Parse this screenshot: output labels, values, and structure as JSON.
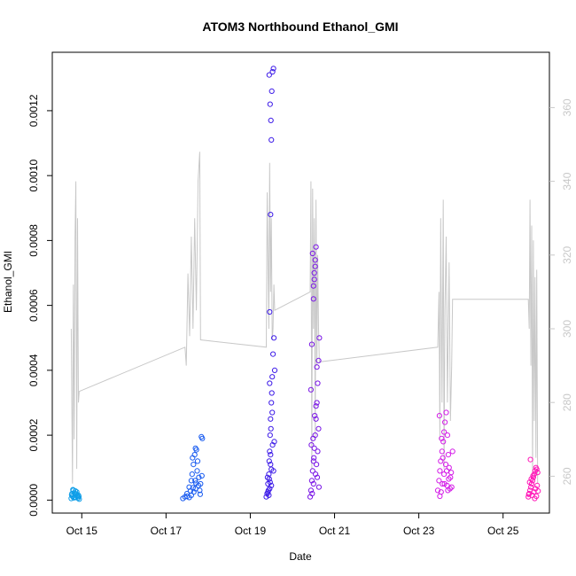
{
  "chart_data": {
    "type": "scatter",
    "title": "ATOM3 Northbound Ethanol_GMI",
    "xlabel": "Date",
    "ylabel": "Ethanol_GMI",
    "x_ticks": [
      "Oct 15",
      "Oct 17",
      "Oct 19",
      "Oct 21",
      "Oct 23",
      "Oct 25"
    ],
    "x_tick_days": [
      15,
      17,
      19,
      21,
      23,
      25
    ],
    "xlim": [
      14.3,
      26.1
    ],
    "y_ticks": [
      "0.0000",
      "0.0002",
      "0.0004",
      "0.0006",
      "0.0008",
      "0.0010",
      "0.0012"
    ],
    "ylim": [
      -4e-05,
      0.00138
    ],
    "y2_ticks": [
      "260",
      "280",
      "300",
      "320",
      "340",
      "360"
    ],
    "y2lim": [
      250,
      375
    ],
    "grid": false,
    "colors": {
      "line": "#c8c8c8",
      "axis": "#000000",
      "right_axis": "#c8c8c8",
      "cluster_1": "#0f9ee8",
      "cluster_2": "#1a5cf0",
      "cluster_3": "#3d1be8",
      "cluster_4": "#7a16e6",
      "cluster_5": "#d41ee8",
      "cluster_6": "#ff19b8"
    },
    "series": [
      {
        "role": "scatter",
        "color": "#0f9ee8",
        "x": [
          14.75,
          14.78,
          14.8,
          14.82,
          14.84,
          14.86,
          14.88,
          14.9,
          14.92,
          14.94,
          14.77,
          14.81,
          14.85,
          14.89,
          14.79,
          14.83,
          14.87,
          14.91,
          14.76,
          14.93
        ],
        "y": [
          5e-06,
          1.2e-05,
          3e-05,
          2.2e-05,
          1.8e-05,
          8e-06,
          2.5e-05,
          1e-05,
          1.5e-05,
          3e-06,
          2e-05,
          7e-06,
          2.8e-05,
          1.4e-05,
          3.2e-05,
          9e-06,
          1.9e-05,
          6e-06,
          1.6e-05,
          1.1e-05
        ]
      },
      {
        "role": "scatter",
        "color": "#1a5cf0",
        "x": [
          17.4,
          17.45,
          17.5,
          17.55,
          17.6,
          17.62,
          17.65,
          17.68,
          17.7,
          17.72,
          17.75,
          17.78,
          17.8,
          17.82,
          17.84,
          17.86,
          17.6,
          17.66,
          17.7,
          17.74,
          17.55,
          17.63,
          17.69,
          17.77,
          17.81,
          17.85,
          17.5,
          17.58,
          17.64,
          17.71
        ],
        "y": [
          5e-06,
          1e-05,
          2e-05,
          4e-05,
          6e-05,
          8e-05,
          0.00011,
          0.00014,
          0.00016,
          0.000155,
          0.00012,
          7e-05,
          3e-05,
          5e-05,
          0.000195,
          0.00019,
          1.5e-05,
          2.5e-05,
          3.5e-05,
          9e-05,
          8e-06,
          0.00013,
          6e-05,
          4.5e-05,
          1.8e-05,
          7.5e-05,
          1.2e-05,
          2.8e-05,
          3.8e-05,
          5.2e-05
        ]
      },
      {
        "role": "scatter",
        "color": "#3d1be8",
        "x": [
          19.38,
          19.4,
          19.42,
          19.44,
          19.45,
          19.46,
          19.47,
          19.48,
          19.5,
          19.52,
          19.54,
          19.56,
          19.58,
          19.46,
          19.48,
          19.5,
          19.49,
          19.47,
          19.51,
          19.45,
          19.53,
          19.55,
          19.43,
          19.41,
          19.57,
          19.46,
          19.5,
          19.48,
          19.52,
          19.44,
          19.49,
          19.47,
          19.51,
          19.45,
          19.53,
          19.42,
          19.55,
          19.46,
          19.5,
          19.48
        ],
        "y": [
          1e-05,
          2e-05,
          5e-05,
          8e-05,
          0.00012,
          0.00015,
          0.0002,
          0.00025,
          0.0003,
          0.00038,
          0.00045,
          0.0005,
          0.0004,
          0.00058,
          0.00088,
          0.00111,
          0.00117,
          0.00122,
          0.00126,
          0.00131,
          0.00132,
          0.00133,
          3e-05,
          7e-05,
          0.00018,
          3.5e-05,
          9.5e-05,
          0.00014,
          0.00027,
          1.5e-05,
          0.00022,
          5.5e-05,
          0.00033,
          6.5e-05,
          0.00017,
          2.5e-05,
          9e-05,
          0.00036,
          4.5e-05,
          0.00011
        ]
      },
      {
        "role": "scatter",
        "color": "#7a16e6",
        "x": [
          20.42,
          20.44,
          20.46,
          20.48,
          20.5,
          20.52,
          20.54,
          20.56,
          20.58,
          20.6,
          20.62,
          20.64,
          20.5,
          20.52,
          20.54,
          20.48,
          20.56,
          20.46,
          20.58,
          20.5,
          20.52,
          20.54,
          20.6,
          20.62,
          20.44,
          20.5,
          20.55,
          20.57,
          20.49,
          20.53,
          20.47,
          20.59,
          20.51,
          20.63,
          20.45,
          20.56
        ],
        "y": [
          1e-05,
          3e-05,
          6e-05,
          9e-05,
          0.00012,
          0.00016,
          0.0002,
          0.00025,
          0.0003,
          0.00036,
          0.00043,
          0.0005,
          0.00066,
          0.0007,
          0.00074,
          0.00076,
          0.00078,
          0.00048,
          0.00041,
          0.00062,
          0.00068,
          0.00072,
          0.00015,
          0.00022,
          0.00034,
          5e-05,
          8e-05,
          0.00011,
          0.00019,
          0.00026,
          2e-05,
          7e-05,
          0.00013,
          4e-05,
          0.00017,
          0.00029
        ]
      },
      {
        "role": "scatter",
        "color": "#d41ee8",
        "x": [
          23.45,
          23.48,
          23.5,
          23.52,
          23.55,
          23.58,
          23.6,
          23.62,
          23.65,
          23.68,
          23.7,
          23.72,
          23.75,
          23.78,
          23.8,
          23.5,
          23.53,
          23.56,
          23.6,
          23.64,
          23.67,
          23.71,
          23.74,
          23.77,
          23.49,
          23.54,
          23.57,
          23.61,
          23.66,
          23.69
        ],
        "y": [
          3e-05,
          6e-05,
          9e-05,
          0.00012,
          0.00015,
          0.00018,
          0.00021,
          0.00024,
          0.00027,
          0.0002,
          0.00014,
          0.0001,
          7e-05,
          4e-05,
          0.00015,
          1.2e-05,
          2.5e-05,
          5e-05,
          8e-05,
          0.00011,
          4.5e-05,
          6.5e-05,
          3.5e-05,
          8.5e-05,
          0.00026,
          0.00019,
          0.00013,
          5e-05,
          9e-05,
          3e-05
        ]
      },
      {
        "role": "scatter",
        "color": "#ff19b8",
        "x": [
          25.6,
          25.62,
          25.64,
          25.66,
          25.68,
          25.7,
          25.72,
          25.74,
          25.76,
          25.78,
          25.8,
          25.82,
          25.65,
          25.69,
          25.73,
          25.77,
          25.81,
          25.63,
          25.67,
          25.71,
          25.75,
          25.79,
          25.61,
          25.83
        ],
        "y": [
          1e-05,
          2e-05,
          3e-05,
          4e-05,
          5e-05,
          6e-05,
          7e-05,
          8e-05,
          9e-05,
          0.0001,
          9.5e-05,
          8.5e-05,
          0.000125,
          1.5e-05,
          2.5e-05,
          3.5e-05,
          4.5e-05,
          5.5e-05,
          6.5e-05,
          7.5e-05,
          5e-06,
          1.2e-05,
          1.8e-05,
          2.8e-05
        ]
      },
      {
        "role": "line",
        "axis": "right",
        "color": "#c8c8c8",
        "x": [
          14.75,
          14.78,
          14.8,
          14.82,
          14.84,
          14.86,
          14.88,
          14.9,
          14.92,
          14.94,
          17.45,
          17.48,
          17.52,
          17.56,
          17.6,
          17.64,
          17.68,
          17.72,
          17.76,
          17.8,
          17.82,
          19.38,
          19.4,
          19.42,
          19.44,
          19.46,
          19.48,
          19.5,
          19.52,
          19.54,
          19.56,
          19.58,
          20.42,
          20.44,
          20.46,
          20.48,
          20.5,
          20.52,
          20.54,
          20.56,
          20.58,
          20.6,
          20.62,
          20.64,
          23.45,
          23.48,
          23.5,
          23.52,
          23.55,
          23.58,
          23.6,
          23.62,
          23.65,
          23.68,
          23.7,
          23.72,
          23.75,
          23.78,
          23.8,
          25.6,
          25.62,
          25.64,
          25.66,
          25.68,
          25.7,
          25.72,
          25.74,
          25.76,
          25.78,
          25.8,
          25.82
        ],
        "y": [
          300,
          258,
          312,
          270,
          325,
          340,
          262,
          330,
          280,
          283,
          295,
          290,
          315,
          298,
          325,
          300,
          330,
          305,
          340,
          348,
          297,
          295,
          337,
          320,
          300,
          345,
          310,
          330,
          297,
          300,
          312,
          305,
          310,
          340,
          262,
          338,
          300,
          330,
          270,
          335,
          290,
          320,
          300,
          291,
          295,
          310,
          270,
          330,
          280,
          335,
          262,
          305,
          325,
          280,
          300,
          318,
          275,
          290,
          308,
          308,
          300,
          335,
          290,
          328,
          260,
          324,
          275,
          314,
          265,
          316,
          258
        ]
      }
    ]
  }
}
